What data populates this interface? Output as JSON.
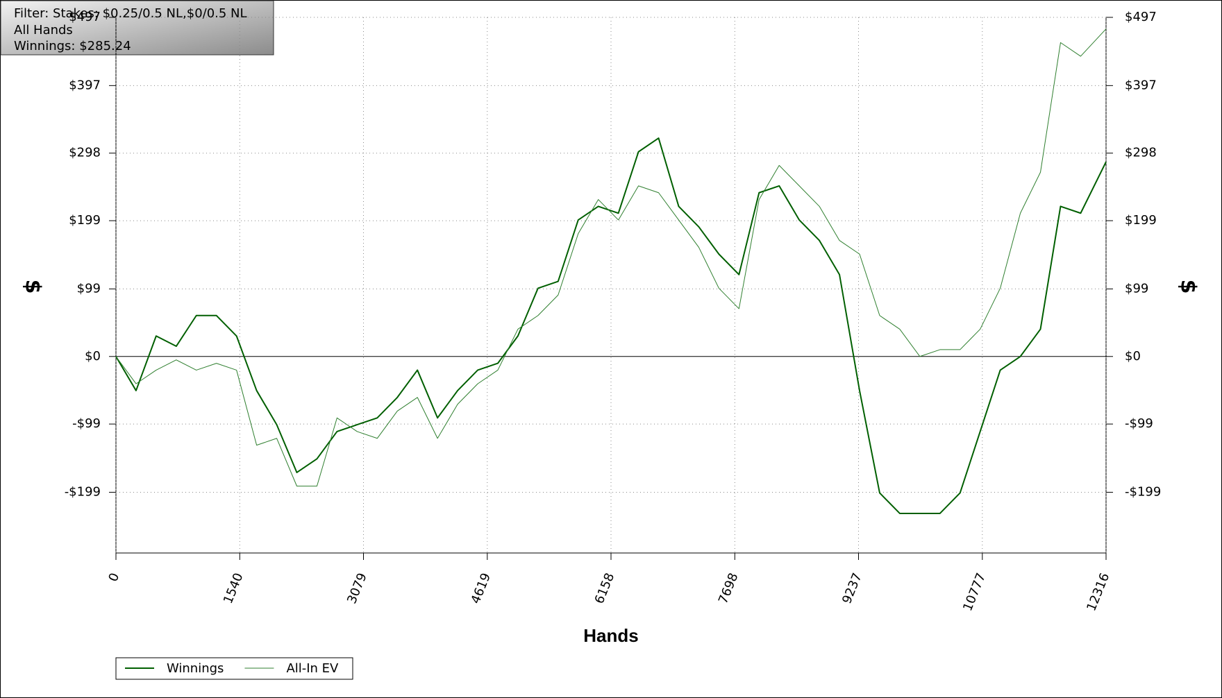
{
  "chart_data": {
    "type": "line",
    "annotations": [
      "Filter: Stakes: $0.25/0.5 NL,$0/0.5 NL",
      "All Hands",
      "Winnings: $285.24"
    ],
    "x_label": "Hands",
    "y_label": "$",
    "y2_label": "$",
    "x": [
      0,
      250,
      500,
      750,
      1000,
      1250,
      1500,
      1750,
      2000,
      2250,
      2500,
      2750,
      3000,
      3250,
      3500,
      3750,
      4000,
      4250,
      4500,
      4750,
      5000,
      5250,
      5500,
      5750,
      6000,
      6250,
      6500,
      6750,
      7000,
      7250,
      7500,
      7750,
      8000,
      8250,
      8500,
      8750,
      9000,
      9250,
      9500,
      9750,
      10000,
      10250,
      10500,
      10750,
      11000,
      11250,
      11500,
      11750,
      12000,
      12316
    ],
    "series": [
      {
        "name": "Winnings",
        "color": "#005f00",
        "width": 2,
        "values": [
          0,
          -50,
          30,
          15,
          60,
          60,
          30,
          -50,
          -100,
          -170,
          -150,
          -110,
          -100,
          -90,
          -60,
          -20,
          -90,
          -50,
          -20,
          -10,
          30,
          100,
          110,
          200,
          220,
          210,
          300,
          320,
          220,
          190,
          150,
          120,
          240,
          250,
          200,
          170,
          120,
          -50,
          -200,
          -230,
          -230,
          -230,
          -200,
          -110,
          -20,
          0,
          40,
          220,
          210,
          285.24
        ]
      },
      {
        "name": "All-In EV",
        "color": "#2f7f2f",
        "width": 1,
        "values": [
          0,
          -40,
          -20,
          -5,
          -20,
          -10,
          -20,
          -130,
          -120,
          -190,
          -190,
          -90,
          -110,
          -120,
          -80,
          -60,
          -120,
          -70,
          -40,
          -20,
          40,
          60,
          90,
          180,
          230,
          200,
          250,
          240,
          200,
          160,
          100,
          70,
          230,
          280,
          250,
          220,
          170,
          150,
          60,
          40,
          0,
          10,
          10,
          40,
          100,
          210,
          270,
          460,
          440,
          480
        ]
      }
    ],
    "xlim": [
      0,
      12316
    ],
    "xticks": [
      0,
      1540,
      3079,
      4619,
      6158,
      7698,
      9237,
      10777,
      12316
    ],
    "ylim": [
      -288,
      497
    ],
    "yticks": [
      {
        "value": 497,
        "label": "$497"
      },
      {
        "value": 397,
        "label": "$397"
      },
      {
        "value": 298,
        "label": "$298"
      },
      {
        "value": 199,
        "label": "$199"
      },
      {
        "value": 99,
        "label": "$99"
      },
      {
        "value": 0,
        "label": "$0"
      },
      {
        "value": -99,
        "label": "-$99"
      },
      {
        "value": -199,
        "label": "-$199"
      }
    ],
    "grid": true,
    "legend": "bottom-left"
  }
}
